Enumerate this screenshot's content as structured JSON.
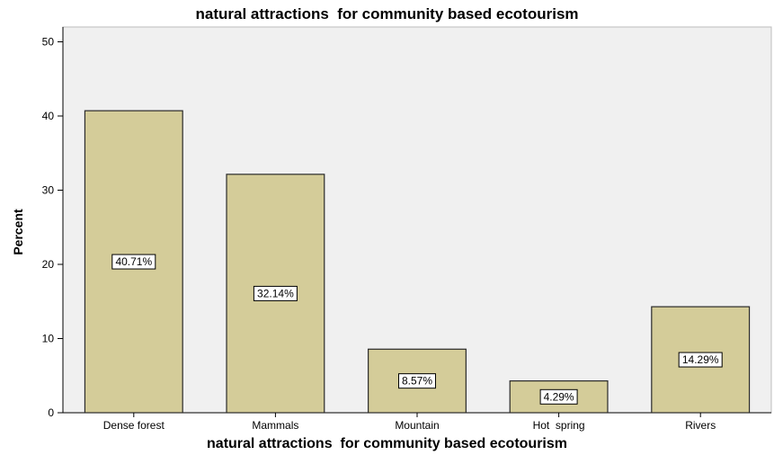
{
  "chart_data": {
    "type": "bar",
    "title": "natural attractions  for community based ecotourism",
    "xlabel": "natural attractions  for community based ecotourism",
    "ylabel": "Percent",
    "categories": [
      "Dense forest",
      "Mammals",
      "Mountain",
      "Hot  spring",
      "Rivers"
    ],
    "values": [
      40.71,
      32.14,
      8.57,
      4.29,
      14.29
    ],
    "data_labels": [
      "40.71%",
      "32.14%",
      "8.57%",
      "4.29%",
      "14.29%"
    ],
    "ylim": [
      0,
      52
    ],
    "yticks": [
      0,
      10,
      20,
      30,
      40,
      50
    ],
    "grid": false,
    "legend": "none",
    "colors": {
      "bar_fill": "#d4cc99",
      "bar_stroke": "#2a2a2a",
      "plot_background": "#f0f0f0",
      "label_box": "#ffffff"
    }
  }
}
